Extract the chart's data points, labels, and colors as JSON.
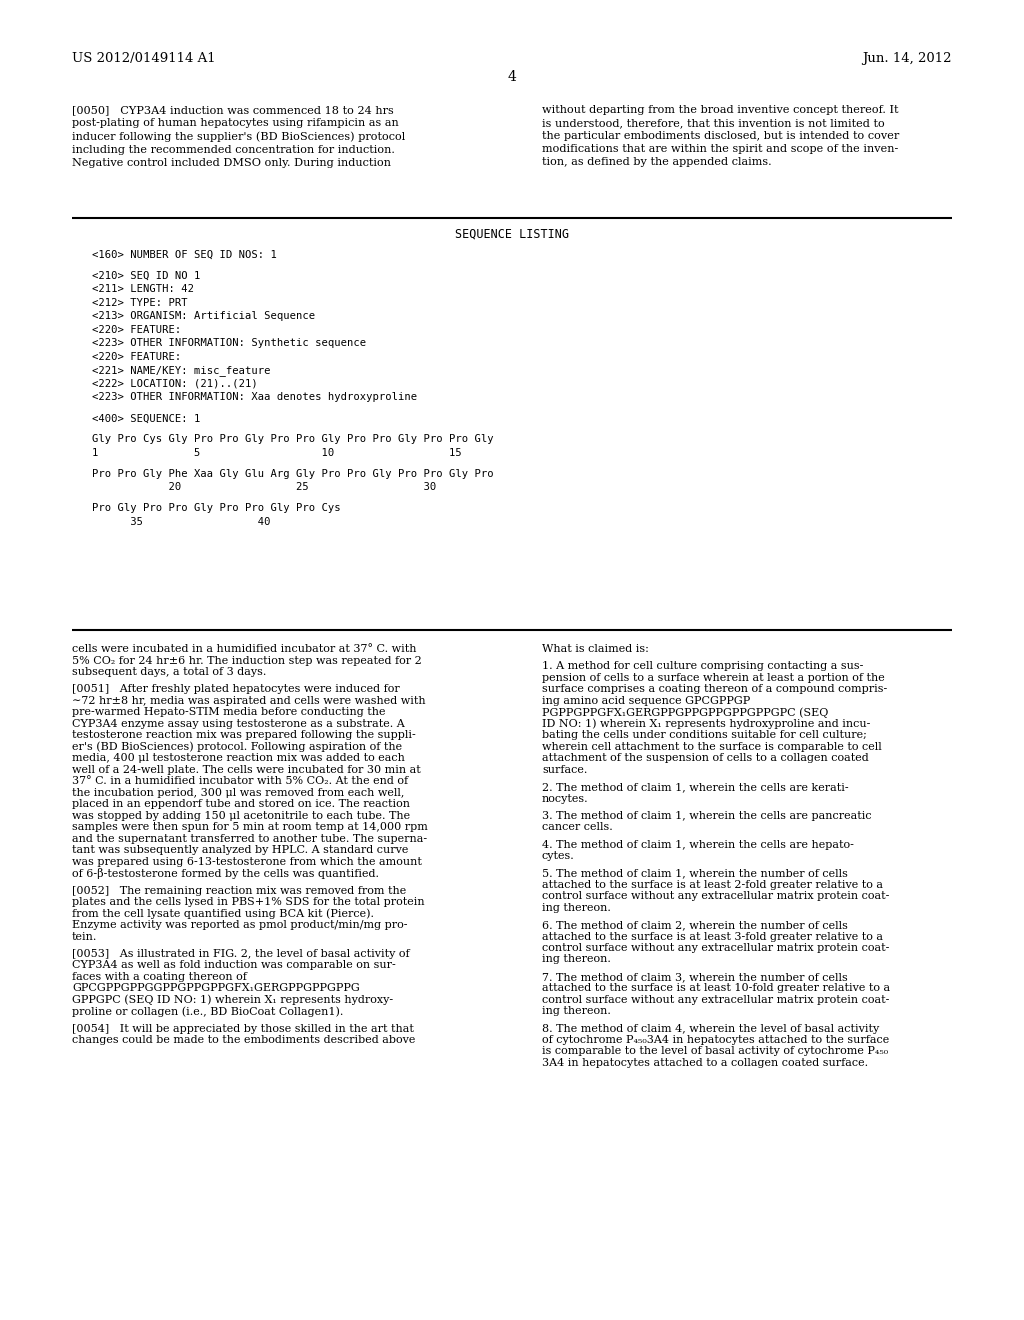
{
  "header_left": "US 2012/0149114 A1",
  "header_right": "Jun. 14, 2012",
  "page_number": "4",
  "background_color": "#ffffff",
  "text_color": "#000000",
  "seq_lines": [
    "<160> NUMBER OF SEQ ID NOS: 1",
    "",
    "<210> SEQ ID NO 1",
    "<211> LENGTH: 42",
    "<212> TYPE: PRT",
    "<213> ORGANISM: Artificial Sequence",
    "<220> FEATURE:",
    "<223> OTHER INFORMATION: Synthetic sequence",
    "<220> FEATURE:",
    "<221> NAME/KEY: misc_feature",
    "<222> LOCATION: (21)..(21)",
    "<223> OTHER INFORMATION: Xaa denotes hydroxyproline",
    "",
    "<400> SEQUENCE: 1",
    "",
    "Gly Pro Cys Gly Pro Pro Gly Pro Pro Gly Pro Pro Gly Pro Pro Gly",
    "1               5                   10                  15",
    "",
    "Pro Pro Gly Phe Xaa Gly Glu Arg Gly Pro Pro Gly Pro Pro Gly Pro",
    "            20                  25                  30",
    "",
    "Pro Gly Pro Pro Gly Pro Pro Gly Pro Cys",
    "      35                  40"
  ]
}
